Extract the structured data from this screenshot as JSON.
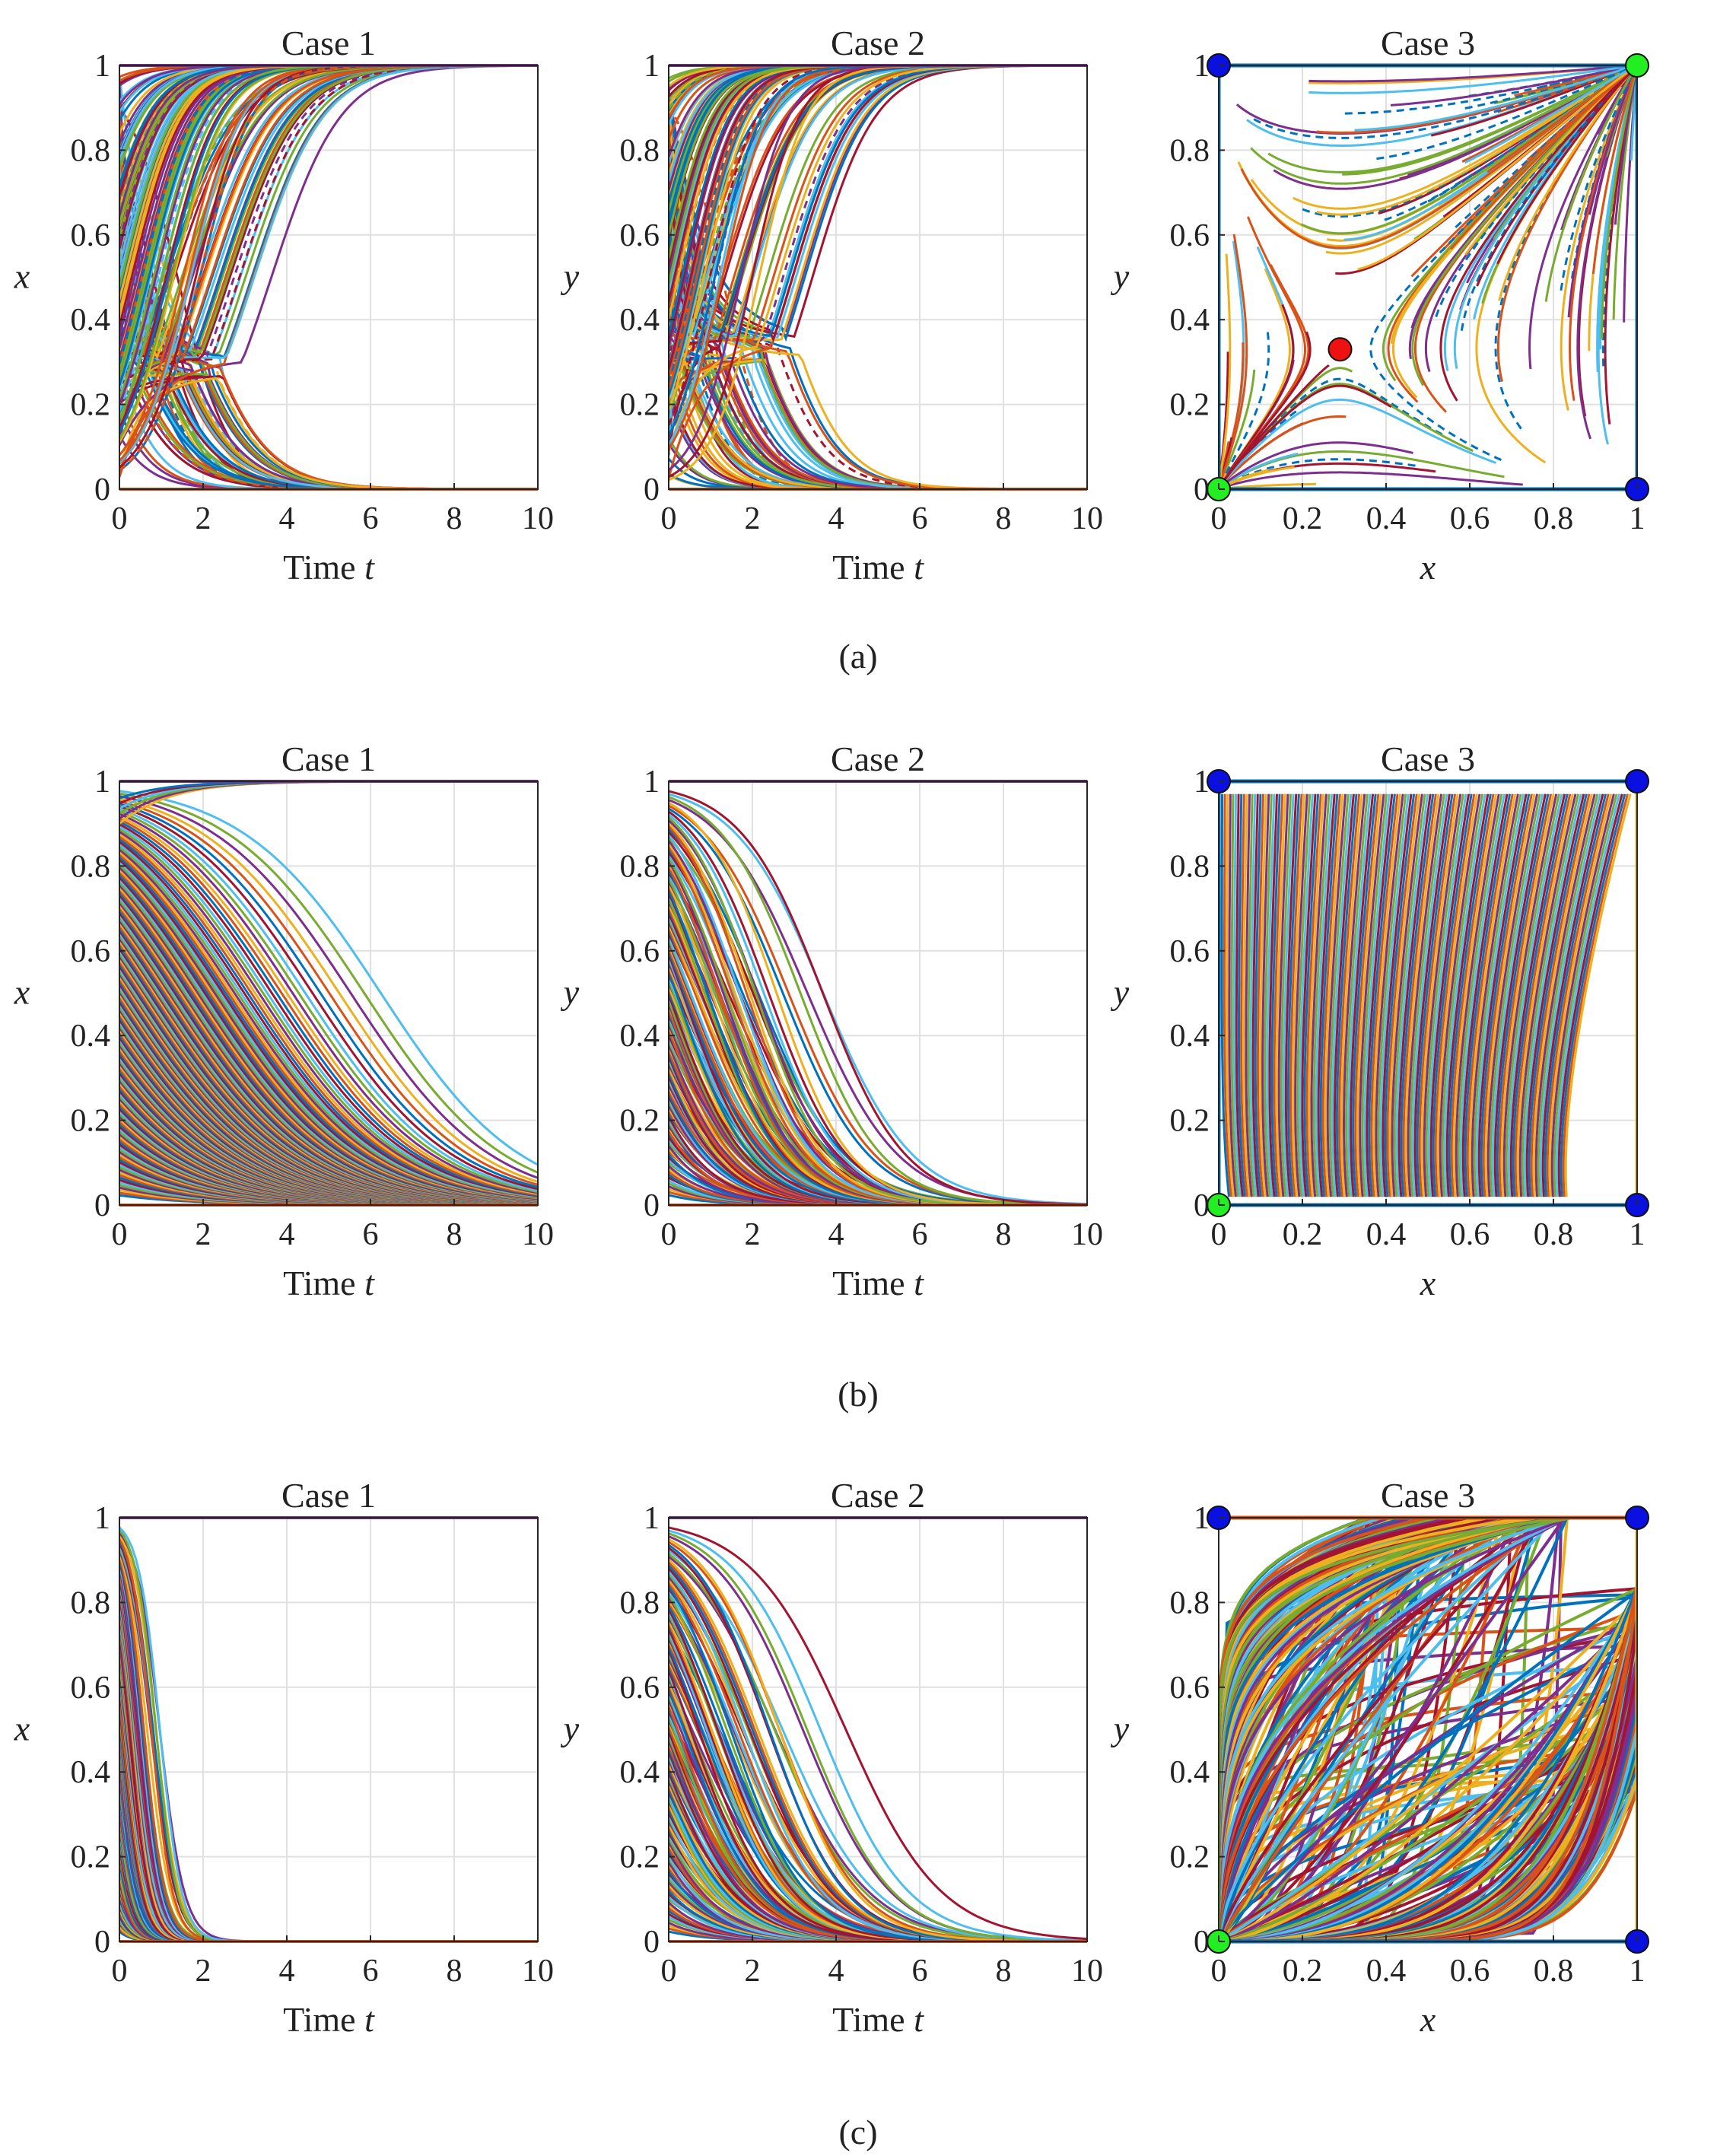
{
  "figure": {
    "colors": [
      "#0072BD",
      "#D95319",
      "#EDB120",
      "#7E2F8E",
      "#77AC30",
      "#4DBEEE",
      "#A2142F"
    ],
    "marker_colors": {
      "blue": "#0a10e0",
      "green": "#22ee22",
      "red": "#ee1111"
    },
    "captions": [
      "(a)",
      "(b)",
      "(c)"
    ]
  },
  "chart_data": [
    {
      "row": "a",
      "panel": "Case 1",
      "type": "line",
      "title": "Case 1",
      "xlabel": "Time t",
      "ylabel": "x",
      "xlim": [
        0,
        10
      ],
      "ylim": [
        0,
        1
      ],
      "xticks": [
        "0",
        "2",
        "4",
        "6",
        "8",
        "10"
      ],
      "yticks": [
        "0",
        "0.2",
        "0.4",
        "0.6",
        "0.8",
        "1"
      ],
      "grid": true,
      "family": "saddle_time",
      "n_trajectories": 180,
      "saddle": 0.29,
      "rate": 1.0,
      "stable_levels": [
        0,
        1
      ]
    },
    {
      "row": "a",
      "panel": "Case 2",
      "type": "line",
      "title": "Case 2",
      "xlabel": "Time t",
      "ylabel": "y",
      "xlim": [
        0,
        10
      ],
      "ylim": [
        0,
        1
      ],
      "xticks": [
        "0",
        "2",
        "4",
        "6",
        "8",
        "10"
      ],
      "yticks": [
        "0",
        "0.2",
        "0.4",
        "0.6",
        "0.8",
        "1"
      ],
      "grid": true,
      "family": "saddle_time",
      "n_trajectories": 180,
      "saddle": 0.33,
      "rate": 1.1,
      "stable_levels": [
        0,
        1
      ]
    },
    {
      "row": "a",
      "panel": "Case 3",
      "type": "line",
      "title": "Case 3",
      "xlabel": "x",
      "ylabel": "y",
      "xlim": [
        0,
        1
      ],
      "ylim": [
        0,
        1
      ],
      "xticks": [
        "0",
        "0.2",
        "0.4",
        "0.6",
        "0.8",
        "1"
      ],
      "yticks": [
        "0",
        "0.2",
        "0.4",
        "0.6",
        "0.8",
        "1"
      ],
      "grid": true,
      "family": "saddle_phase",
      "n_trajectories": 150,
      "saddle_point": [
        0.29,
        0.33
      ],
      "equilibria": [
        {
          "x": 0,
          "y": 1,
          "color": "blue"
        },
        {
          "x": 1,
          "y": 1,
          "color": "green"
        },
        {
          "x": 0.29,
          "y": 0.33,
          "color": "red"
        },
        {
          "x": 0,
          "y": 0,
          "color": "green"
        },
        {
          "x": 1,
          "y": 0,
          "color": "blue"
        }
      ]
    },
    {
      "row": "b",
      "panel": "Case 1",
      "type": "line",
      "title": "Case 1",
      "xlabel": "Time t",
      "ylabel": "x",
      "xlim": [
        0,
        10
      ],
      "ylim": [
        0,
        1
      ],
      "xticks": [
        "0",
        "2",
        "4",
        "6",
        "8",
        "10"
      ],
      "yticks": [
        "0",
        "0.2",
        "0.4",
        "0.6",
        "0.8",
        "1"
      ],
      "grid": true,
      "family": "decay_time",
      "n_trajectories": 160,
      "rate": 1.0,
      "max_half_time": 8.6,
      "rising_curves": 6
    },
    {
      "row": "b",
      "panel": "Case 2",
      "type": "line",
      "title": "Case 2",
      "xlabel": "Time t",
      "ylabel": "y",
      "xlim": [
        0,
        10
      ],
      "ylim": [
        0,
        1
      ],
      "xticks": [
        "0",
        "2",
        "4",
        "6",
        "8",
        "10"
      ],
      "yticks": [
        "0",
        "0.2",
        "0.4",
        "0.6",
        "0.8",
        "1"
      ],
      "grid": true,
      "family": "decay_time",
      "n_trajectories": 140,
      "rate": 1.0,
      "max_half_time": 3.9,
      "rising_curves": 0
    },
    {
      "row": "b",
      "panel": "Case 3",
      "type": "line",
      "title": "Case 3",
      "xlabel": "x",
      "ylabel": "y",
      "xlim": [
        0,
        1
      ],
      "ylim": [
        0,
        1
      ],
      "xticks": [
        "0",
        "0.2",
        "0.4",
        "0.6",
        "0.8",
        "1"
      ],
      "yticks": [
        "0",
        "0.2",
        "0.4",
        "0.6",
        "0.8",
        "1"
      ],
      "grid": true,
      "family": "vertical_phase",
      "n_trajectories": 150,
      "equilibria": [
        {
          "x": 0,
          "y": 1,
          "color": "blue"
        },
        {
          "x": 1,
          "y": 1,
          "color": "blue"
        },
        {
          "x": 0,
          "y": 0,
          "color": "green"
        },
        {
          "x": 1,
          "y": 0,
          "color": "blue"
        }
      ]
    },
    {
      "row": "c",
      "panel": "Case 1",
      "type": "line",
      "title": "Case 1",
      "xlabel": "Time t",
      "ylabel": "x",
      "xlim": [
        0,
        10
      ],
      "ylim": [
        0,
        1
      ],
      "xticks": [
        "0",
        "2",
        "4",
        "6",
        "8",
        "10"
      ],
      "yticks": [
        "0",
        "0.2",
        "0.4",
        "0.6",
        "0.8",
        "1"
      ],
      "grid": true,
      "family": "decay_time",
      "n_trajectories": 160,
      "rate": 1.8,
      "max_half_time": 1.9,
      "rising_curves": 0
    },
    {
      "row": "c",
      "panel": "Case 2",
      "type": "line",
      "title": "Case 2",
      "xlabel": "Time t",
      "ylabel": "y",
      "xlim": [
        0,
        10
      ],
      "ylim": [
        0,
        1
      ],
      "xticks": [
        "0",
        "2",
        "4",
        "6",
        "8",
        "10"
      ],
      "yticks": [
        "0",
        "0.2",
        "0.4",
        "0.6",
        "0.8",
        "1"
      ],
      "grid": true,
      "family": "decay_time",
      "n_trajectories": 140,
      "rate": 1.0,
      "max_half_time": 4.0,
      "rising_curves": 0
    },
    {
      "row": "c",
      "panel": "Case 3",
      "type": "line",
      "title": "Case 3",
      "xlabel": "x",
      "ylabel": "y",
      "xlim": [
        0,
        1
      ],
      "ylim": [
        0,
        1
      ],
      "xticks": [
        "0",
        "0.2",
        "0.4",
        "0.6",
        "0.8",
        "1"
      ],
      "yticks": [
        "0",
        "0.2",
        "0.4",
        "0.6",
        "0.8",
        "1"
      ],
      "grid": true,
      "family": "node_phase",
      "n_trajectories": 170,
      "equilibria": [
        {
          "x": 0,
          "y": 1,
          "color": "blue"
        },
        {
          "x": 1,
          "y": 1,
          "color": "blue"
        },
        {
          "x": 0,
          "y": 0,
          "color": "green"
        },
        {
          "x": 1,
          "y": 0,
          "color": "blue"
        }
      ]
    }
  ]
}
